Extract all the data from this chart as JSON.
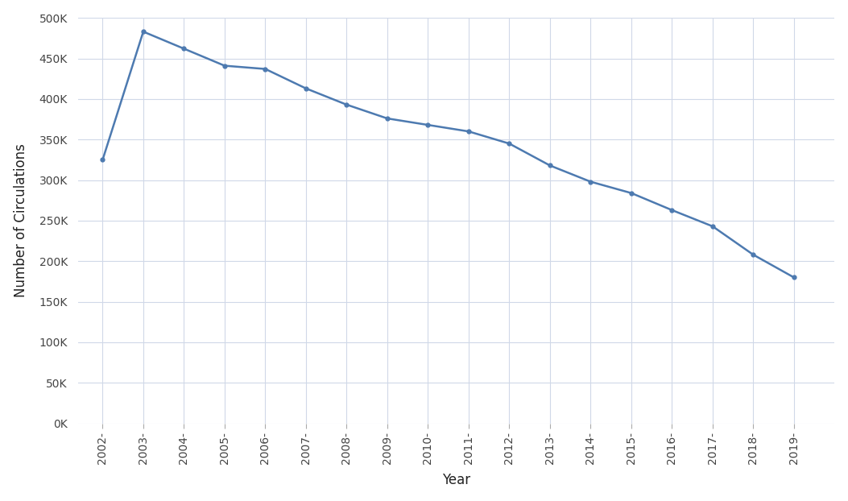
{
  "years": [
    "2002-",
    "2003-",
    "2004-",
    "2005-",
    "2006-",
    "2007-",
    "2008-",
    "2009-",
    "2010-",
    "2011-",
    "2012-",
    "2013-",
    "2014-",
    "2015-",
    "2016-",
    "2017-",
    "2018-",
    "2019-"
  ],
  "values": [
    325000,
    483000,
    462000,
    441000,
    437000,
    413000,
    393000,
    376000,
    368000,
    360000,
    345000,
    318000,
    298000,
    284000,
    263000,
    243000,
    208000,
    180000
  ],
  "line_color": "#4d7ab0",
  "marker_color": "#4d7ab0",
  "background_color": "#ffffff",
  "grid_color": "#d0d8e8",
  "ylabel": "Number of Circulations",
  "xlabel": "Year",
  "ylim": [
    0,
    500000
  ],
  "ytick_step": 50000,
  "tick_label_color": "#444444",
  "axis_label_color": "#222222",
  "font_size_axis_label": 12,
  "font_size_tick": 10,
  "line_width": 1.8,
  "marker_size": 3.5
}
